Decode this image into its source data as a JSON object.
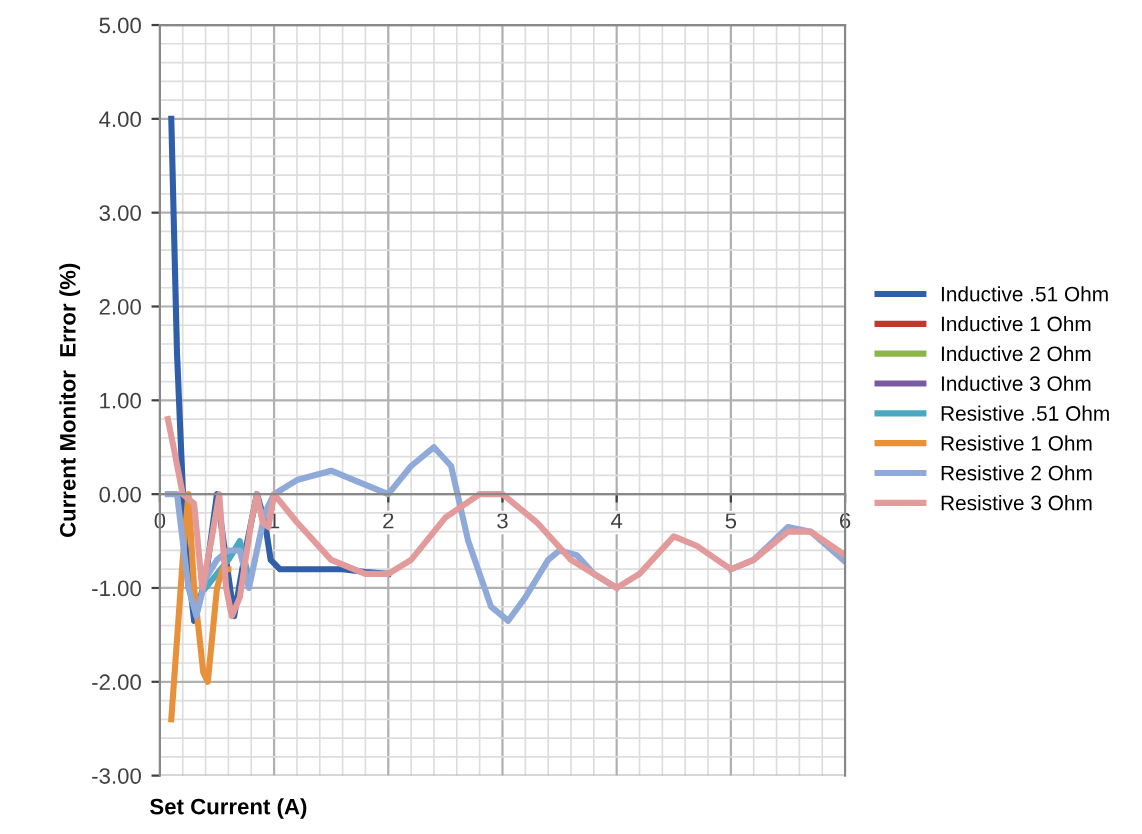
{
  "chart_data": {
    "type": "line",
    "xlabel": "Set Current (A)",
    "ylabel": "Current Monitor  Error (%)",
    "xlim": [
      0,
      6
    ],
    "xticks": [
      0,
      1,
      2,
      3,
      4,
      5,
      6
    ],
    "ylim": [
      -3,
      5
    ],
    "yticks": [
      {
        "value": 5,
        "label": "5.00"
      },
      {
        "value": 4,
        "label": "4.00"
      },
      {
        "value": 3,
        "label": "3.00"
      },
      {
        "value": 2,
        "label": "2.00"
      },
      {
        "value": 1,
        "label": "1.00"
      },
      {
        "value": 0,
        "label": "0.00"
      },
      {
        "value": -1,
        "label": "-1.00"
      },
      {
        "value": -2,
        "label": "-2.00"
      },
      {
        "value": -3,
        "label": "-3.00"
      }
    ],
    "grid": true,
    "legend": "right",
    "marker": "none",
    "line_style": "solid",
    "series": [
      {
        "name": "Inductive .51 Ohm",
        "color": "#2e5fa8",
        "x": [
          0.1,
          0.15,
          0.22,
          0.3,
          0.4,
          0.5,
          0.58,
          0.65,
          0.75,
          0.85,
          0.92,
          0.97,
          1.05,
          1.3,
          1.6,
          1.8,
          2.0
        ],
        "values": [
          4.0,
          1.5,
          -0.5,
          -1.35,
          -0.9,
          0.0,
          -0.7,
          -1.3,
          -0.6,
          0.0,
          -0.3,
          -0.7,
          -0.8,
          -0.8,
          -0.8,
          -0.83,
          -0.85
        ]
      },
      {
        "name": "Inductive 1 Ohm",
        "color": "#c0392b"
      },
      {
        "name": "Inductive 2 Ohm",
        "color": "#8db548"
      },
      {
        "name": "Inductive 3 Ohm",
        "color": "#7a5aa0"
      },
      {
        "name": "Resistive .51 Ohm",
        "color": "#4aa9c0",
        "x": [
          0.4,
          0.5,
          0.6,
          0.7,
          0.78
        ],
        "values": [
          -1.0,
          -0.85,
          -0.7,
          -0.5,
          -0.9
        ]
      },
      {
        "name": "Resistive 1 Ohm",
        "color": "#e8913a",
        "x": [
          0.1,
          0.2,
          0.25,
          0.3,
          0.38,
          0.42,
          0.5,
          0.55,
          0.6
        ],
        "values": [
          -2.4,
          -0.7,
          0.0,
          -1.0,
          -1.9,
          -2.0,
          -1.0,
          -0.8,
          -0.8
        ]
      },
      {
        "name": "Resistive 2 Ohm",
        "color": "#8fa9d9",
        "x": [
          0.07,
          0.15,
          0.25,
          0.32,
          0.4,
          0.5,
          0.6,
          0.7,
          0.78,
          0.85,
          0.92,
          1.0,
          1.2,
          1.5,
          1.7,
          2.0,
          2.2,
          2.4,
          2.55,
          2.7,
          2.9,
          3.05,
          3.2,
          3.4,
          3.5,
          3.65,
          3.8,
          4.0,
          4.2,
          4.5,
          4.7,
          5.0,
          5.2,
          5.5,
          5.7,
          6.0
        ],
        "values": [
          0.0,
          0.0,
          -1.0,
          -1.3,
          -0.9,
          -0.7,
          -0.6,
          -0.6,
          -1.0,
          -0.6,
          -0.2,
          0.0,
          0.15,
          0.25,
          0.15,
          0.0,
          0.3,
          0.5,
          0.3,
          -0.5,
          -1.2,
          -1.35,
          -1.1,
          -0.7,
          -0.6,
          -0.65,
          -0.85,
          -1.0,
          null,
          null,
          null,
          -0.8,
          -0.7,
          -0.35,
          -0.4,
          -0.72
        ]
      },
      {
        "name": "Resistive 3 Ohm",
        "color": "#e39a9a",
        "x": [
          0.07,
          0.12,
          0.2,
          0.3,
          0.37,
          0.45,
          0.52,
          0.58,
          0.63,
          0.7,
          0.8,
          0.85,
          0.9,
          0.95,
          1.0,
          1.2,
          1.5,
          1.8,
          2.0,
          2.2,
          2.5,
          2.8,
          3.0,
          3.3,
          3.6,
          4.0,
          4.2,
          4.5,
          4.7,
          5.0,
          5.2,
          5.5,
          5.7,
          6.0
        ],
        "values": [
          0.8,
          0.5,
          0.0,
          -0.1,
          -1.0,
          -0.5,
          0.0,
          -1.0,
          -1.3,
          -1.1,
          -0.3,
          0.0,
          -0.3,
          -0.35,
          0.0,
          -0.3,
          -0.7,
          -0.85,
          -0.85,
          -0.7,
          -0.25,
          0.0,
          0.0,
          -0.3,
          -0.7,
          -1.0,
          -0.85,
          -0.45,
          -0.55,
          -0.8,
          -0.7,
          -0.4,
          -0.4,
          -0.65
        ]
      }
    ]
  }
}
